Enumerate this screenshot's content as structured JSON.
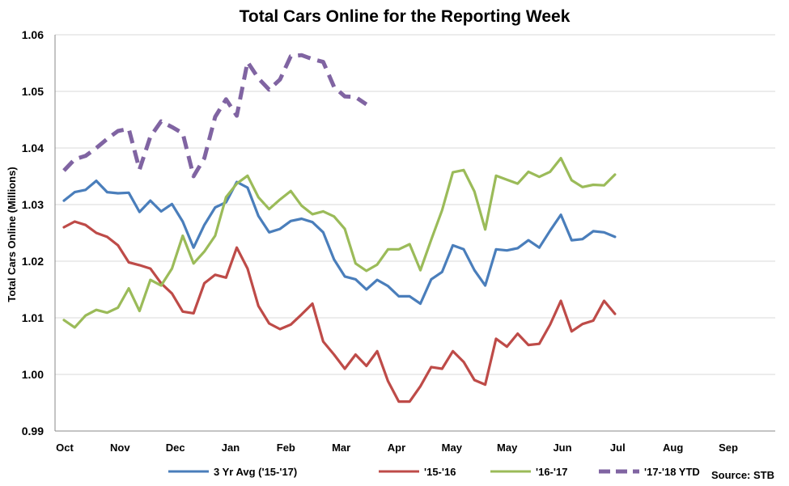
{
  "chart_data": {
    "type": "line",
    "title": "Total Cars Online for the Reporting Week",
    "ylabel": "Total Cars Online (Millions)",
    "xlabel": "",
    "ylim": [
      0.99,
      1.06
    ],
    "yticks": [
      "1.06",
      "1.05",
      "1.04",
      "1.03",
      "1.02",
      "1.01",
      "1.00",
      "0.99"
    ],
    "ytick_values": [
      1.06,
      1.05,
      1.04,
      1.03,
      1.02,
      1.01,
      1.0,
      0.99
    ],
    "grid": true,
    "legend_placement": "bottom",
    "month_labels": [
      "Oct",
      "Nov",
      "Dec",
      "Jan",
      "Feb",
      "Mar",
      "Apr",
      "May",
      "May",
      "Jun",
      "Jul",
      "Aug",
      "Sep"
    ],
    "week_count": 53,
    "series": [
      {
        "name": "3 Yr Avg ('15-'17)",
        "color": "#4a7ebb",
        "dashed": false,
        "values": [
          1.0307,
          1.0322,
          1.0326,
          1.0342,
          1.0322,
          1.032,
          1.0321,
          1.0287,
          1.0307,
          1.0288,
          1.0301,
          1.027,
          1.0224,
          1.0264,
          1.0295,
          1.0304,
          1.034,
          1.033,
          1.028,
          1.0251,
          1.0257,
          1.0271,
          1.0275,
          1.0269,
          1.0251,
          1.0203,
          1.0173,
          1.0168,
          1.015,
          1.0167,
          1.0156,
          1.0138,
          1.0138,
          1.0125,
          1.0168,
          1.0181,
          1.0228,
          1.0221,
          1.0184,
          1.0157,
          1.0221,
          1.0219,
          1.0223,
          1.0237,
          1.0224,
          1.0254,
          1.0282,
          1.0237,
          1.0239,
          1.0253,
          1.0251,
          1.0243
        ]
      },
      {
        "name": "'15-'16",
        "color": "#be4b48",
        "dashed": false,
        "values": [
          1.026,
          1.027,
          1.0264,
          1.025,
          1.0243,
          1.0228,
          1.0198,
          1.0193,
          1.0187,
          1.0161,
          1.0143,
          1.0111,
          1.0108,
          1.0161,
          1.0176,
          1.0171,
          1.0224,
          1.0187,
          1.0121,
          1.009,
          1.008,
          1.0088,
          1.0106,
          1.0125,
          1.0058,
          1.0035,
          1.001,
          1.0035,
          1.0015,
          1.0041,
          0.9988,
          0.9952,
          0.9952,
          0.9979,
          1.0013,
          1.001,
          1.0041,
          1.0022,
          0.999,
          0.9982,
          1.0063,
          1.0049,
          1.0072,
          1.0052,
          1.0054,
          1.0088,
          1.013,
          1.0076,
          1.0089,
          1.0095,
          1.013,
          1.0107
        ]
      },
      {
        "name": "'16-'17",
        "color": "#9bbb59",
        "dashed": false,
        "values": [
          1.0096,
          1.0083,
          1.0104,
          1.0114,
          1.0109,
          1.0118,
          1.0152,
          1.0112,
          1.0167,
          1.0157,
          1.0187,
          1.0245,
          1.0196,
          1.0217,
          1.0245,
          1.0313,
          1.0337,
          1.0351,
          1.0313,
          1.0292,
          1.0309,
          1.0324,
          1.0298,
          1.0283,
          1.0288,
          1.0279,
          1.0257,
          1.0196,
          1.0183,
          1.0194,
          1.0221,
          1.0221,
          1.023,
          1.0184,
          1.0238,
          1.029,
          1.0357,
          1.0361,
          1.0323,
          1.0256,
          1.0351,
          1.0344,
          1.0337,
          1.0358,
          1.0349,
          1.0358,
          1.0382,
          1.0343,
          1.0331,
          1.0335,
          1.0334,
          1.0353
        ]
      },
      {
        "name": "'17-'18 YTD",
        "color": "#8064a2",
        "dashed": true,
        "values": [
          1.036,
          1.038,
          1.0386,
          1.04,
          1.0416,
          1.043,
          1.0434,
          1.0362,
          1.042,
          1.0447,
          1.0437,
          1.0426,
          1.035,
          1.0382,
          1.0455,
          1.0486,
          1.0457,
          1.0552,
          1.0523,
          1.0503,
          1.0521,
          1.0562,
          1.0564,
          1.0557,
          1.0552,
          1.0508,
          1.0491,
          1.049,
          1.0477
        ]
      }
    ]
  },
  "source_label": "Source:  STB"
}
